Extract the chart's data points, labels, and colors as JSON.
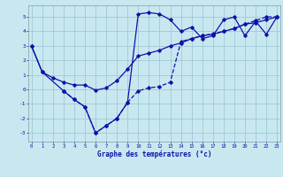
{
  "line1_x": [
    0,
    1,
    3,
    4,
    5,
    6,
    7,
    8,
    9,
    10,
    11,
    12,
    13,
    14,
    15,
    16,
    17,
    18,
    19,
    20,
    21,
    22,
    23
  ],
  "line1_y": [
    3.0,
    1.2,
    -0.1,
    -0.7,
    -1.2,
    -3.0,
    -2.5,
    -2.0,
    -0.9,
    5.2,
    5.3,
    5.2,
    4.8,
    4.0,
    4.3,
    3.5,
    3.7,
    4.8,
    5.0,
    3.7,
    4.7,
    3.8,
    5.0
  ],
  "line2_x": [
    0,
    1,
    2,
    3,
    4,
    5,
    6,
    7,
    8,
    9,
    10,
    11,
    12,
    13,
    14,
    15,
    16,
    17,
    18,
    19,
    20,
    21,
    22,
    23
  ],
  "line2_y": [
    3.0,
    1.2,
    0.8,
    0.5,
    0.3,
    0.3,
    -0.05,
    0.1,
    0.6,
    1.4,
    2.3,
    2.5,
    2.7,
    3.0,
    3.2,
    3.5,
    3.7,
    3.8,
    4.0,
    4.2,
    4.5,
    4.6,
    4.8,
    5.0
  ],
  "line3_x": [
    3,
    4,
    5,
    6,
    7,
    8,
    9,
    10,
    11,
    12,
    13,
    14,
    15,
    16,
    17,
    18,
    19,
    20,
    21,
    22,
    23
  ],
  "line3_y": [
    -0.1,
    -0.7,
    -1.2,
    -3.0,
    -2.5,
    -2.0,
    -0.9,
    -0.1,
    0.1,
    0.2,
    0.5,
    3.3,
    3.5,
    3.7,
    3.85,
    4.0,
    4.2,
    4.5,
    4.75,
    5.0,
    5.0
  ],
  "bg_color": "#c8e8f0",
  "grid_color": "#a0c8d8",
  "line_color": "#1010aa",
  "xlabel": "Graphe des températures (°c)",
  "xlim": [
    -0.3,
    23.3
  ],
  "ylim": [
    -3.6,
    5.8
  ],
  "yticks": [
    -3,
    -2,
    -1,
    0,
    1,
    2,
    3,
    4,
    5
  ],
  "xticks": [
    0,
    1,
    2,
    3,
    4,
    5,
    6,
    7,
    8,
    9,
    10,
    11,
    12,
    13,
    14,
    15,
    16,
    17,
    18,
    19,
    20,
    21,
    22,
    23
  ]
}
